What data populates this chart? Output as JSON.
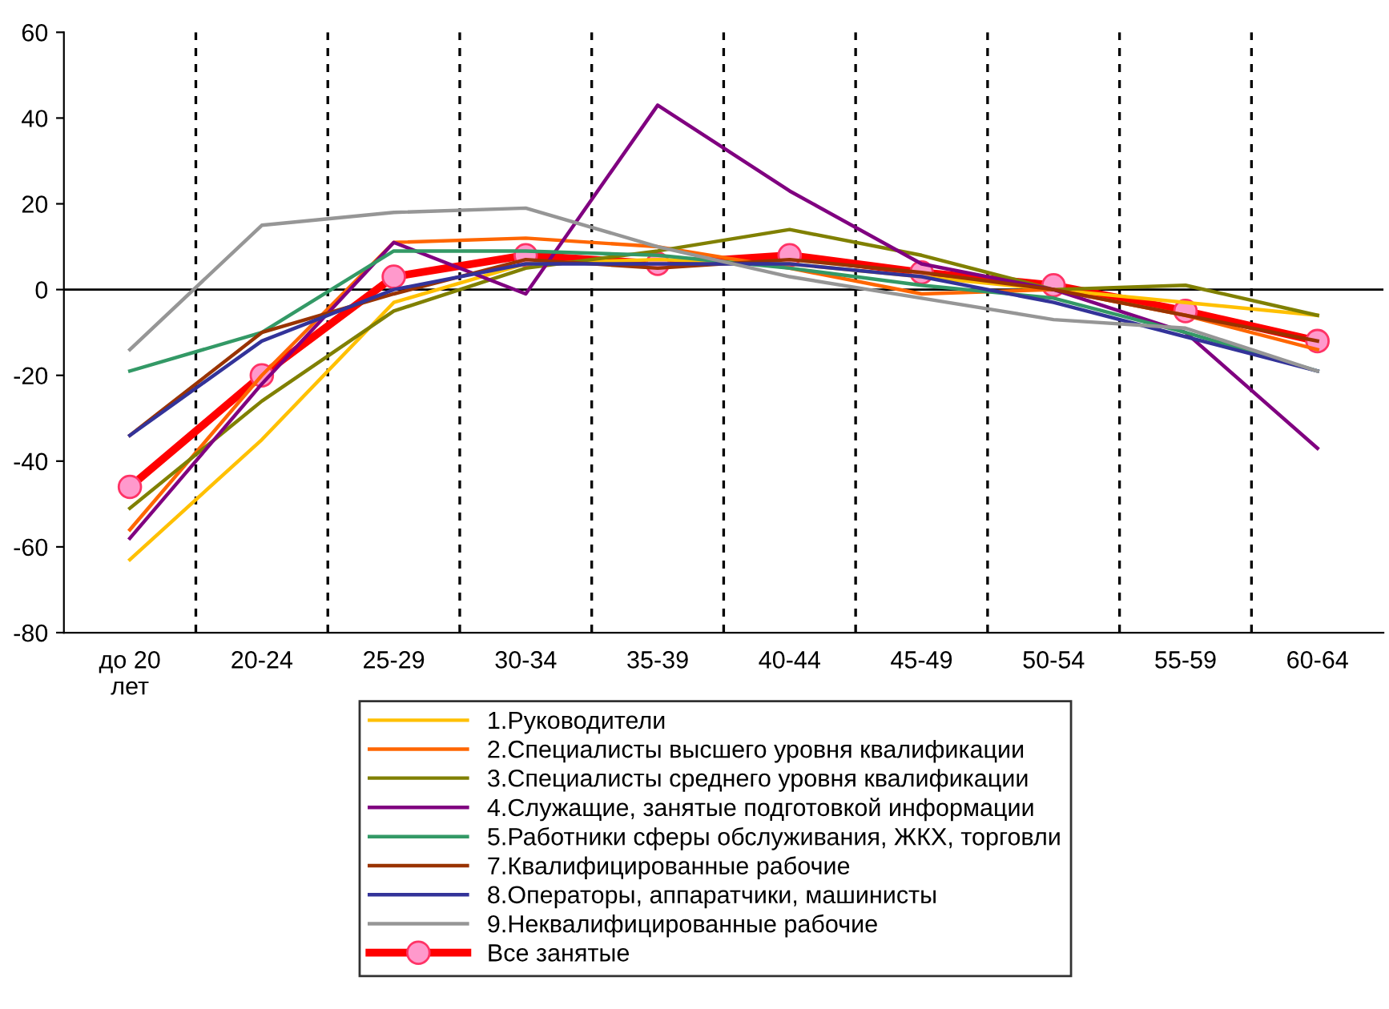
{
  "chart_data": {
    "type": "line",
    "categories": [
      "до 20\nлет",
      "20-24",
      "25-29",
      "30-34",
      "35-39",
      "40-44",
      "45-49",
      "50-54",
      "55-59",
      "60-64"
    ],
    "ylim": [
      -80,
      60
    ],
    "yticks": [
      -80,
      -60,
      -40,
      -20,
      0,
      20,
      40,
      60
    ],
    "grid": "x",
    "legend": "bottom",
    "line_style": "solid",
    "ref_lines": [
      {
        "axis": "y",
        "value": 0,
        "color": "#000000"
      }
    ],
    "series": [
      {
        "name": "1.Руководители",
        "color": "#ffc000",
        "values": [
          -63,
          -35,
          -3,
          6,
          7,
          6,
          3,
          0,
          -3,
          -6
        ]
      },
      {
        "name": "2.Специалисты высшего уровня квалификации",
        "color": "#ff6600",
        "values": [
          -56,
          -20,
          11,
          12,
          10,
          5,
          -1,
          0,
          -6,
          -14
        ]
      },
      {
        "name": "3.Специалисты среднего уровня квалификации",
        "color": "#808000",
        "values": [
          -51,
          -26,
          -5,
          5,
          9,
          14,
          8,
          0,
          1,
          -6
        ]
      },
      {
        "name": "4.Служащие, занятые подготовкой информации",
        "color": "#800080",
        "values": [
          -58,
          -22,
          11,
          -1,
          43,
          23,
          6,
          0,
          -10,
          -37
        ]
      },
      {
        "name": "5.Работники сферы обслуживания, ЖКХ, торговли",
        "color": "#339966",
        "values": [
          -19,
          -10,
          9,
          9,
          8,
          5,
          1,
          -2,
          -10,
          -19
        ]
      },
      {
        "name": "7.Квалифицированные рабочие",
        "color": "#993300",
        "values": [
          -34,
          -10,
          -1,
          7,
          5,
          7,
          4,
          0,
          -6,
          -12
        ]
      },
      {
        "name": "8.Операторы, аппаратчики, машинисты",
        "color": "#333399",
        "values": [
          -34,
          -12,
          0,
          6,
          6,
          6,
          3,
          -3,
          -11,
          -19
        ]
      },
      {
        "name": "9.Неквалифицированные рабочие",
        "color": "#969696",
        "values": [
          -14,
          15,
          18,
          19,
          10,
          3,
          -2,
          -7,
          -9,
          -19
        ]
      },
      {
        "name": "Все занятые",
        "color": "#ff0000",
        "marker": "circle",
        "values": [
          -46,
          -20,
          3,
          8,
          6,
          8,
          4,
          1,
          -5,
          -12
        ]
      }
    ]
  }
}
